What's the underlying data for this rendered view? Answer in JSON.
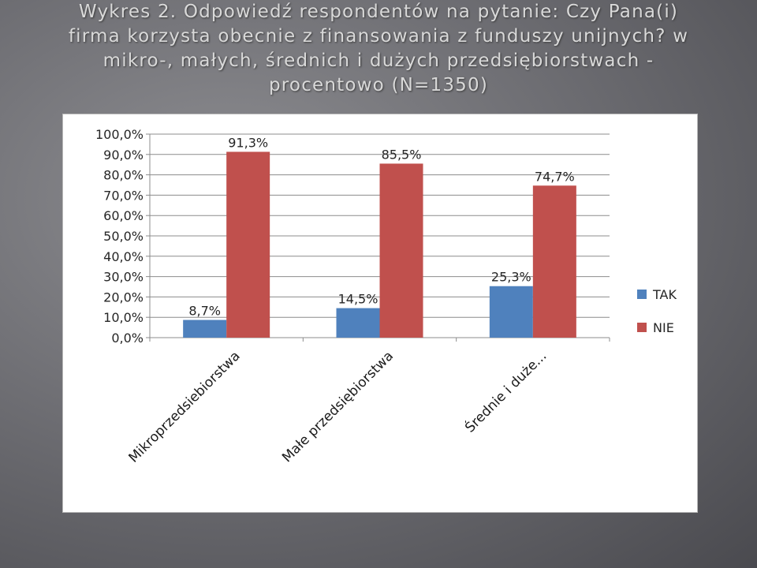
{
  "slide": {
    "title_lines": [
      "Wykres 2. Odpowiedź respondentów na pytanie: Czy Pana(i)",
      "firma korzysta obecnie z finansowania z funduszy unijnych?  w",
      "mikro-, małych, średnich i dużych przedsiębiorstwach -",
      "procentowo (N=1350)"
    ]
  },
  "chart_data": {
    "type": "bar",
    "categories": [
      "Mikroprzedsiebiorstwa",
      "Małe przedsiębiorstwa",
      "Średnie i duże..."
    ],
    "series": [
      {
        "name": "TAK",
        "values": [
          8.7,
          14.5,
          25.3
        ],
        "color": "#4f81bd",
        "labels": [
          "8,7%",
          "14,5%",
          "25,3%"
        ]
      },
      {
        "name": "NIE",
        "values": [
          91.3,
          85.5,
          74.7
        ],
        "color": "#c0504d",
        "labels": [
          "91,3%",
          "85,5%",
          "74,7%"
        ]
      }
    ],
    "ylim": [
      0,
      100
    ],
    "yticks": [
      0,
      10,
      20,
      30,
      40,
      50,
      60,
      70,
      80,
      90,
      100
    ],
    "ytick_labels": [
      "0,0%",
      "10,0%",
      "20,0%",
      "30,0%",
      "40,0%",
      "50,0%",
      "60,0%",
      "70,0%",
      "80,0%",
      "90,0%",
      "100,0%"
    ],
    "grid": true,
    "legend_position": "right"
  }
}
